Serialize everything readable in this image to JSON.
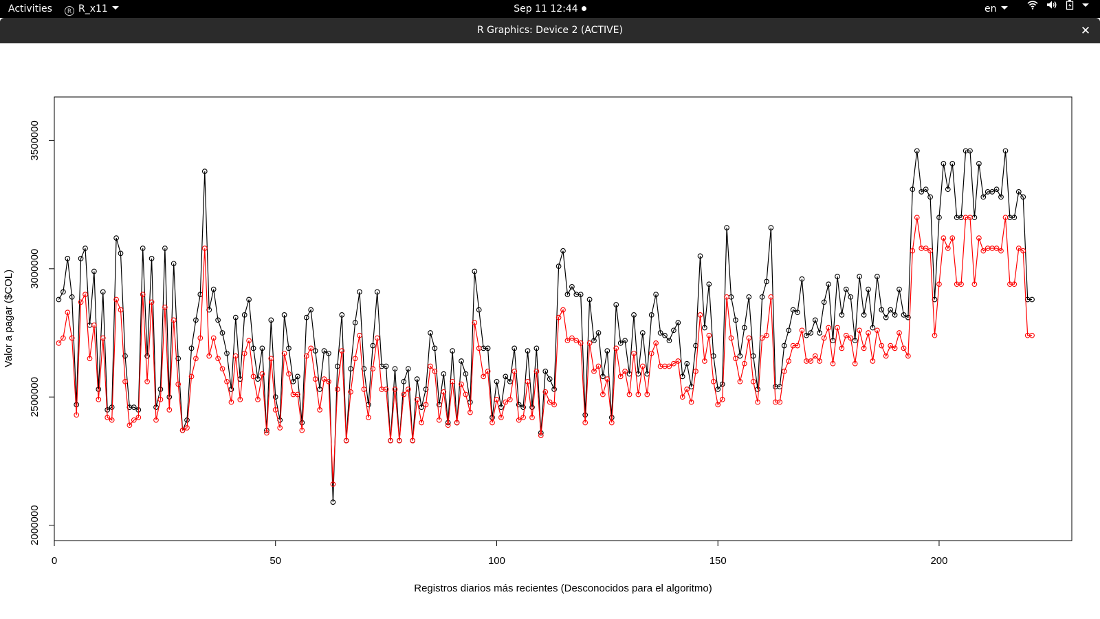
{
  "topbar": {
    "activities": "Activities",
    "app_name": "R_x11",
    "app_icon": "r-logo-icon",
    "clock": "Sep 11  12:44",
    "language": "en",
    "tray_icons": [
      "wifi-icon",
      "volume-icon",
      "battery-icon",
      "system-menu-caret-icon"
    ]
  },
  "window": {
    "title": "R Graphics: Device 2 (ACTIVE)",
    "close_label": "✕"
  },
  "colors": {
    "series_black": "#000000",
    "series_red": "#ff0000",
    "topbar_bg": "#000000",
    "titlebar_bg": "#2b2b2b"
  },
  "chart_data": {
    "type": "line",
    "title": "",
    "xlabel": "Registros diarios más recientes (Desconocidos para el algoritmo)",
    "ylabel": "Valor a pagar ($COL)",
    "xlim": [
      0,
      230
    ],
    "ylim": [
      1940000,
      3670000
    ],
    "xticks": [
      0,
      50,
      100,
      150,
      200
    ],
    "yticks": [
      2000000,
      2500000,
      3000000,
      3500000
    ],
    "markers": "open-circle",
    "grid": false,
    "legend": "none",
    "x": [
      1,
      2,
      3,
      4,
      5,
      6,
      7,
      8,
      9,
      10,
      11,
      12,
      13,
      14,
      15,
      16,
      17,
      18,
      19,
      20,
      21,
      22,
      23,
      24,
      25,
      26,
      27,
      28,
      29,
      30,
      31,
      32,
      33,
      34,
      35,
      36,
      37,
      38,
      39,
      40,
      41,
      42,
      43,
      44,
      45,
      46,
      47,
      48,
      49,
      50,
      51,
      52,
      53,
      54,
      55,
      56,
      57,
      58,
      59,
      60,
      61,
      62,
      63,
      64,
      65,
      66,
      67,
      68,
      69,
      70,
      71,
      72,
      73,
      74,
      75,
      76,
      77,
      78,
      79,
      80,
      81,
      82,
      83,
      84,
      85,
      86,
      87,
      88,
      89,
      90,
      91,
      92,
      93,
      94,
      95,
      96,
      97,
      98,
      99,
      100,
      101,
      102,
      103,
      104,
      105,
      106,
      107,
      108,
      109,
      110,
      111,
      112,
      113,
      114,
      115,
      116,
      117,
      118,
      119,
      120,
      121,
      122,
      123,
      124,
      125,
      126,
      127,
      128,
      129,
      130,
      131,
      132,
      133,
      134,
      135,
      136,
      137,
      138,
      139,
      140,
      141,
      142,
      143,
      144,
      145,
      146,
      147,
      148,
      149,
      150,
      151,
      152,
      153,
      154,
      155,
      156,
      157,
      158,
      159,
      160,
      161,
      162,
      163,
      164,
      165,
      166,
      167,
      168,
      169,
      170,
      171,
      172,
      173,
      174,
      175,
      176,
      177,
      178,
      179,
      180,
      181,
      182,
      183,
      184,
      185,
      186,
      187,
      188,
      189,
      190,
      191,
      192,
      193,
      194,
      195,
      196,
      197,
      198,
      199,
      200,
      201,
      202,
      203,
      204,
      205,
      206,
      207,
      208,
      209,
      210,
      211,
      212,
      213,
      214,
      215,
      216,
      217,
      218,
      219,
      220,
      221
    ],
    "series": [
      {
        "color": "#000000",
        "values": [
          2880000,
          2910000,
          3040000,
          2890000,
          2470000,
          3040000,
          3080000,
          2780000,
          2990000,
          2530000,
          2910000,
          2450000,
          2460000,
          3120000,
          3060000,
          2660000,
          2460000,
          2460000,
          2450000,
          3080000,
          2660000,
          3040000,
          2460000,
          2530000,
          3080000,
          2500000,
          3020000,
          2650000,
          2370000,
          2410000,
          2690000,
          2800000,
          2900000,
          3380000,
          2840000,
          2920000,
          2800000,
          2750000,
          2670000,
          2530000,
          2810000,
          2570000,
          2820000,
          2880000,
          2690000,
          2570000,
          2690000,
          2370000,
          2800000,
          2500000,
          2410000,
          2820000,
          2690000,
          2560000,
          2580000,
          2400000,
          2810000,
          2840000,
          2680000,
          2530000,
          2680000,
          2670000,
          2090000,
          2620000,
          2820000,
          2330000,
          2610000,
          2790000,
          2910000,
          2610000,
          2470000,
          2700000,
          2910000,
          2620000,
          2620000,
          2330000,
          2610000,
          2330000,
          2560000,
          2610000,
          2330000,
          2570000,
          2460000,
          2530000,
          2750000,
          2690000,
          2470000,
          2590000,
          2400000,
          2680000,
          2400000,
          2640000,
          2590000,
          2480000,
          2990000,
          2840000,
          2690000,
          2690000,
          2420000,
          2560000,
          2460000,
          2580000,
          2560000,
          2690000,
          2470000,
          2460000,
          2680000,
          2460000,
          2690000,
          2360000,
          2600000,
          2570000,
          2530000,
          3010000,
          3070000,
          2900000,
          2930000,
          2900000,
          2900000,
          2430000,
          2880000,
          2720000,
          2750000,
          2580000,
          2680000,
          2420000,
          2860000,
          2710000,
          2720000,
          2590000,
          2820000,
          2590000,
          2750000,
          2590000,
          2820000,
          2900000,
          2750000,
          2740000,
          2720000,
          2760000,
          2790000,
          2580000,
          2630000,
          2540000,
          2700000,
          3050000,
          2770000,
          2940000,
          2660000,
          2530000,
          2550000,
          3160000,
          2890000,
          2800000,
          2660000,
          2770000,
          2890000,
          2660000,
          2530000,
          2890000,
          2950000,
          3160000,
          2540000,
          2540000,
          2700000,
          2760000,
          2840000,
          2830000,
          2960000,
          2740000,
          2750000,
          2800000,
          2750000,
          2870000,
          2940000,
          2720000,
          2970000,
          2820000,
          2920000,
          2890000,
          2720000,
          2970000,
          2820000,
          2920000,
          2770000,
          2970000,
          2840000,
          2810000,
          2840000,
          2820000,
          2920000,
          2820000,
          2810000,
          3310000,
          3460000,
          3300000,
          3310000,
          3280000,
          2880000,
          3200000,
          3410000,
          3310000,
          3410000,
          3200000,
          3200000,
          3460000,
          3460000,
          3200000,
          3410000,
          3280000,
          3300000,
          3300000,
          3310000,
          3280000,
          3460000,
          3200000,
          3200000,
          3300000,
          3280000,
          2880000,
          2880000
        ]
      },
      {
        "color": "#ff0000",
        "values": [
          2710000,
          2730000,
          2830000,
          2730000,
          2430000,
          2870000,
          2900000,
          2650000,
          2780000,
          2490000,
          2730000,
          2420000,
          2410000,
          2880000,
          2840000,
          2560000,
          2390000,
          2410000,
          2420000,
          2900000,
          2560000,
          2870000,
          2410000,
          2490000,
          2850000,
          2450000,
          2800000,
          2550000,
          2370000,
          2380000,
          2580000,
          2650000,
          2730000,
          3080000,
          2660000,
          2730000,
          2650000,
          2610000,
          2560000,
          2480000,
          2660000,
          2490000,
          2670000,
          2720000,
          2580000,
          2490000,
          2590000,
          2360000,
          2650000,
          2450000,
          2380000,
          2670000,
          2590000,
          2510000,
          2510000,
          2370000,
          2660000,
          2690000,
          2570000,
          2450000,
          2570000,
          2560000,
          2160000,
          2530000,
          2680000,
          2330000,
          2520000,
          2650000,
          2740000,
          2530000,
          2420000,
          2610000,
          2730000,
          2530000,
          2530000,
          2330000,
          2530000,
          2330000,
          2510000,
          2530000,
          2330000,
          2490000,
          2400000,
          2470000,
          2620000,
          2600000,
          2410000,
          2520000,
          2390000,
          2560000,
          2400000,
          2550000,
          2510000,
          2440000,
          2790000,
          2690000,
          2580000,
          2600000,
          2400000,
          2490000,
          2420000,
          2480000,
          2490000,
          2600000,
          2410000,
          2420000,
          2560000,
          2420000,
          2600000,
          2350000,
          2520000,
          2480000,
          2470000,
          2810000,
          2840000,
          2720000,
          2730000,
          2720000,
          2710000,
          2400000,
          2710000,
          2600000,
          2620000,
          2510000,
          2570000,
          2400000,
          2690000,
          2580000,
          2600000,
          2510000,
          2670000,
          2510000,
          2620000,
          2510000,
          2670000,
          2710000,
          2620000,
          2620000,
          2620000,
          2630000,
          2640000,
          2500000,
          2530000,
          2480000,
          2600000,
          2820000,
          2640000,
          2740000,
          2560000,
          2470000,
          2490000,
          2890000,
          2730000,
          2650000,
          2560000,
          2630000,
          2730000,
          2560000,
          2480000,
          2730000,
          2740000,
          2890000,
          2480000,
          2480000,
          2600000,
          2640000,
          2700000,
          2700000,
          2760000,
          2640000,
          2640000,
          2660000,
          2640000,
          2730000,
          2770000,
          2630000,
          2770000,
          2690000,
          2740000,
          2730000,
          2630000,
          2760000,
          2690000,
          2750000,
          2640000,
          2760000,
          2700000,
          2660000,
          2700000,
          2690000,
          2750000,
          2690000,
          2660000,
          3070000,
          3200000,
          3080000,
          3080000,
          3070000,
          2740000,
          2940000,
          3120000,
          3080000,
          3120000,
          2940000,
          2940000,
          3200000,
          3200000,
          2940000,
          3120000,
          3070000,
          3080000,
          3080000,
          3080000,
          3070000,
          3200000,
          2940000,
          2940000,
          3080000,
          3070000,
          2740000,
          2740000
        ]
      }
    ]
  }
}
